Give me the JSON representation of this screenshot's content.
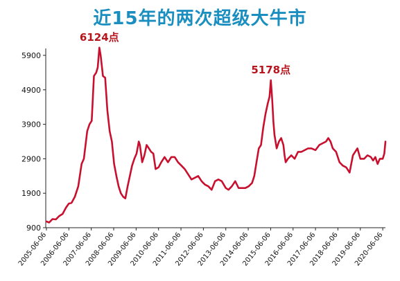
{
  "chart_data": {
    "type": "line",
    "title": "近15年的两次超级大牛市",
    "xlabel": "",
    "ylabel": "",
    "ylim": [
      900,
      6100
    ],
    "y_ticks": [
      900,
      1900,
      2900,
      3900,
      4900,
      5900
    ],
    "y_tick_labels": [
      "900",
      "1900",
      "2900",
      "3900",
      "4900",
      "5900"
    ],
    "x_tick_labels": [
      "2005-06-06",
      "2006-06-06",
      "2007-06-06",
      "2008-06-06",
      "2009-06-06",
      "2010-06-06",
      "2011-06-06",
      "2012-06-06",
      "2013-06-06",
      "2014-06-06",
      "2015-06-06",
      "2016-06-06",
      "2017-06-06",
      "2018-06-06",
      "2019-06-06",
      "2020-06-06"
    ],
    "xlim": [
      2005.4,
      2020.55
    ],
    "grid": false,
    "legend": "none",
    "line_color": "#c8102e",
    "annotations": [
      {
        "text": "6124点",
        "x": 2007.79,
        "y": 6124
      },
      {
        "text": "5178点",
        "x": 2015.44,
        "y": 5178
      }
    ],
    "series": [
      {
        "x": [
          2005.43,
          2005.55,
          2005.7,
          2005.85,
          2006.0,
          2006.15,
          2006.3,
          2006.43,
          2006.55,
          2006.7,
          2006.85,
          2007.0,
          2007.1,
          2007.25,
          2007.35,
          2007.45,
          2007.55,
          2007.65,
          2007.72,
          2007.79,
          2007.85,
          2007.95,
          2008.05,
          2008.15,
          2008.25,
          2008.35,
          2008.45,
          2008.55,
          2008.65,
          2008.75,
          2008.85,
          2008.95,
          2009.05,
          2009.15,
          2009.25,
          2009.35,
          2009.45,
          2009.55,
          2009.6,
          2009.7,
          2009.8,
          2009.9,
          2010.0,
          2010.1,
          2010.2,
          2010.3,
          2010.43,
          2010.55,
          2010.7,
          2010.85,
          2011.0,
          2011.15,
          2011.3,
          2011.45,
          2011.6,
          2011.75,
          2011.9,
          2012.05,
          2012.2,
          2012.35,
          2012.5,
          2012.65,
          2012.8,
          2012.95,
          2013.1,
          2013.25,
          2013.43,
          2013.55,
          2013.7,
          2013.85,
          2014.0,
          2014.15,
          2014.3,
          2014.45,
          2014.6,
          2014.7,
          2014.8,
          2014.9,
          2015.0,
          2015.1,
          2015.2,
          2015.3,
          2015.38,
          2015.44,
          2015.5,
          2015.55,
          2015.6,
          2015.7,
          2015.8,
          2015.9,
          2016.0,
          2016.05,
          2016.1,
          2016.2,
          2016.35,
          2016.5,
          2016.65,
          2016.8,
          2016.95,
          2017.1,
          2017.25,
          2017.43,
          2017.6,
          2017.75,
          2017.9,
          2018.0,
          2018.1,
          2018.2,
          2018.35,
          2018.5,
          2018.65,
          2018.8,
          2018.95,
          2019.1,
          2019.2,
          2019.3,
          2019.43,
          2019.6,
          2019.75,
          2019.9,
          2020.0,
          2020.1,
          2020.2,
          2020.3,
          2020.43,
          2020.5,
          2020.55
        ],
        "values": [
          1080,
          1050,
          1150,
          1140,
          1240,
          1300,
          1480,
          1600,
          1620,
          1800,
          2100,
          2750,
          2900,
          3700,
          3900,
          4000,
          5300,
          5400,
          5550,
          6124,
          5900,
          5300,
          5250,
          4300,
          3700,
          3400,
          2750,
          2400,
          2100,
          1900,
          1800,
          1750,
          2100,
          2400,
          2700,
          2900,
          3050,
          3400,
          3300,
          2800,
          3000,
          3300,
          3200,
          3100,
          3050,
          2600,
          2650,
          2800,
          2950,
          2800,
          2950,
          2950,
          2800,
          2700,
          2600,
          2450,
          2300,
          2350,
          2400,
          2250,
          2150,
          2100,
          2000,
          2250,
          2300,
          2250,
          2050,
          2000,
          2100,
          2250,
          2050,
          2050,
          2050,
          2100,
          2200,
          2400,
          2800,
          3200,
          3300,
          3800,
          4200,
          4500,
          4700,
          5178,
          4600,
          4000,
          3600,
          3200,
          3400,
          3500,
          3300,
          3000,
          2800,
          2900,
          3000,
          2900,
          3100,
          3100,
          3150,
          3200,
          3200,
          3150,
          3300,
          3350,
          3400,
          3500,
          3400,
          3200,
          3100,
          2800,
          2700,
          2650,
          2500,
          3000,
          3100,
          3200,
          2900,
          2900,
          3000,
          2950,
          2850,
          2950,
          2750,
          2900,
          2900,
          3050,
          3400
        ]
      }
    ]
  }
}
